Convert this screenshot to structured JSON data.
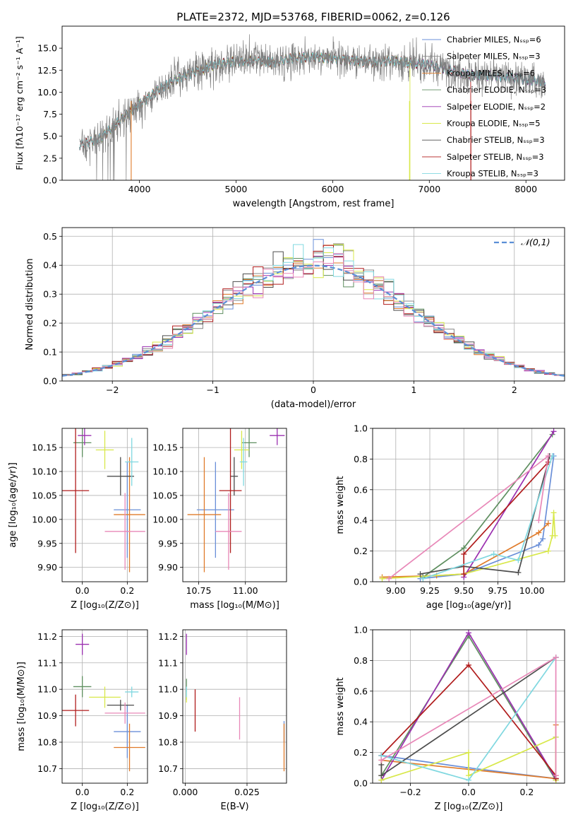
{
  "figure": {
    "title": "PLATE=2372, MJD=53768, FIBERID=0062, z=0.126"
  },
  "colors": {
    "Chabrier MILES": "#6a8fd8",
    "Salpeter MILES": "#888888",
    "Kroupa MILES": "#e07b2a",
    "Chabrier ELODIE": "#5f8f60",
    "Salpeter ELODIE": "#9b30b0",
    "Kroupa ELODIE": "#d8e84a",
    "Chabrier STELIB": "#4d4d4d",
    "Salpeter STELIB": "#b01c1c",
    "Kroupa STELIB": "#80d8e0",
    "pink": "#e888b8"
  },
  "chart_data": [
    {
      "id": "spectrum",
      "type": "line",
      "xlabel": "wavelength [Angstrom, rest frame]",
      "ylabel": "Flux [fλ10⁻¹⁷ erg cm⁻² s⁻¹ A⁻¹]",
      "xlim": [
        3200,
        8400
      ],
      "ylim": [
        0,
        17.5
      ],
      "xticks": [
        4000,
        5000,
        6000,
        7000,
        8000
      ],
      "yticks": [
        0.0,
        2.5,
        5.0,
        7.5,
        10.0,
        12.5,
        15.0
      ],
      "grid": false,
      "legend": "right",
      "legend_entries": [
        "Chabrier MILES, Nₛₛₚ=6",
        "Salpeter MILES, Nₛₛₚ=3",
        "Kroupa MILES, Nₛₛₚ=6",
        "Chabrier ELODIE, Nₛₛₚ=3",
        "Salpeter ELODIE, Nₛₛₚ=2",
        "Kroupa ELODIE, Nₛₛₚ=5",
        "Chabrier STELIB, Nₛₛₚ=3",
        "Salpeter STELIB, Nₛₛₚ=3",
        "Kroupa STELIB, Nₛₛₚ=3"
      ],
      "continuum": [
        [
          3380,
          4.0
        ],
        [
          3600,
          4.8
        ],
        [
          3800,
          6.8
        ],
        [
          4000,
          8.6
        ],
        [
          4200,
          10.3
        ],
        [
          4400,
          11.6
        ],
        [
          4600,
          12.4
        ],
        [
          4800,
          13.2
        ],
        [
          5000,
          13.5
        ],
        [
          5200,
          13.6
        ],
        [
          5400,
          13.4
        ],
        [
          5600,
          13.9
        ],
        [
          5800,
          14.0
        ],
        [
          6000,
          13.8
        ],
        [
          6200,
          13.6
        ],
        [
          6400,
          13.4
        ],
        [
          6600,
          13.6
        ],
        [
          6800,
          13.3
        ],
        [
          7000,
          13.1
        ],
        [
          7200,
          12.6
        ],
        [
          7400,
          12.0
        ],
        [
          7600,
          11.9
        ],
        [
          7800,
          11.7
        ],
        [
          8000,
          11.4
        ],
        [
          8200,
          11.2
        ]
      ]
    },
    {
      "id": "residuals",
      "type": "histogram",
      "xlabel": "(data-model)/error",
      "ylabel": "Normed distribution",
      "xlim": [
        -2.5,
        2.5
      ],
      "ylim": [
        0,
        0.53
      ],
      "xticks": [
        -2,
        -1,
        0,
        1,
        2
      ],
      "yticks": [
        0.0,
        0.1,
        0.2,
        0.3,
        0.4,
        0.5
      ],
      "grid": true,
      "legend": "top-right",
      "legend_entries": [
        "𝒩(0,1)"
      ],
      "bin_width": 0.1
    },
    {
      "id": "age-vs-Z",
      "type": "errorbar",
      "xlabel": "Z [log₁₀(Z/Z⊙)]",
      "ylabel": "age  [log₁₀(age/yr)]",
      "xlim": [
        -0.09,
        0.29
      ],
      "ylim": [
        9.87,
        10.19
      ],
      "xticks": [
        0.0,
        0.2
      ],
      "yticks": [
        9.9,
        9.95,
        10.0,
        10.05,
        10.1,
        10.15
      ],
      "grid": true,
      "points": [
        {
          "c": "Chabrier MILES",
          "x": 0.2,
          "xe": 0.06,
          "y": 10.02,
          "ye": 0.1
        },
        {
          "c": "Kroupa MILES",
          "x": 0.21,
          "xe": 0.07,
          "y": 10.01,
          "ye": 0.12
        },
        {
          "c": "Chabrier ELODIE",
          "x": 0.0,
          "xe": 0.04,
          "y": 10.16,
          "ye": 0.03
        },
        {
          "c": "Salpeter ELODIE",
          "x": 0.01,
          "xe": 0.03,
          "y": 10.175,
          "ye": 0.02
        },
        {
          "c": "Kroupa ELODIE",
          "x": 0.1,
          "xe": 0.04,
          "y": 10.145,
          "ye": 0.04
        },
        {
          "c": "Chabrier STELIB",
          "x": 0.17,
          "xe": 0.06,
          "y": 10.09,
          "ye": 0.04
        },
        {
          "c": "Salpeter STELIB",
          "x": -0.03,
          "xe": 0.06,
          "y": 10.06,
          "ye": 0.13
        },
        {
          "c": "Kroupa STELIB",
          "x": 0.22,
          "xe": 0.03,
          "y": 10.12,
          "ye": 0.05
        },
        {
          "c": "pink",
          "x": 0.19,
          "xe": 0.09,
          "y": 9.975,
          "ye": 0.08
        }
      ]
    },
    {
      "id": "age-vs-mass",
      "type": "errorbar",
      "xlabel": "mass [log₁₀(M/M⊙)]",
      "ylabel": "",
      "xlim": [
        10.665,
        11.22
      ],
      "ylim": [
        9.87,
        10.19
      ],
      "xticks": [
        10.75,
        11.0
      ],
      "yticks": [
        9.9,
        9.95,
        10.0,
        10.05,
        10.1,
        10.15
      ],
      "grid": true,
      "points": [
        {
          "c": "Chabrier MILES",
          "x": 10.84,
          "xe": 0.1,
          "y": 10.02,
          "ye": 0.1
        },
        {
          "c": "Kroupa MILES",
          "x": 10.78,
          "xe": 0.09,
          "y": 10.01,
          "ye": 0.12
        },
        {
          "c": "Chabrier ELODIE",
          "x": 11.02,
          "xe": 0.04,
          "y": 10.16,
          "ye": 0.03
        },
        {
          "c": "Salpeter ELODIE",
          "x": 11.17,
          "xe": 0.04,
          "y": 10.175,
          "ye": 0.02
        },
        {
          "c": "Kroupa ELODIE",
          "x": 10.98,
          "xe": 0.04,
          "y": 10.145,
          "ye": 0.04
        },
        {
          "c": "Chabrier STELIB",
          "x": 10.94,
          "xe": 0.02,
          "y": 10.09,
          "ye": 0.04
        },
        {
          "c": "Salpeter STELIB",
          "x": 10.92,
          "xe": 0.06,
          "y": 10.06,
          "ye": 0.13
        },
        {
          "c": "Kroupa STELIB",
          "x": 10.99,
          "xe": 0.02,
          "y": 10.12,
          "ye": 0.05
        },
        {
          "c": "pink",
          "x": 10.91,
          "xe": 0.07,
          "y": 9.975,
          "ye": 0.08
        }
      ]
    },
    {
      "id": "weight-vs-age",
      "type": "line",
      "xlabel": "age  [log₁₀(age/yr)]",
      "ylabel": "mass weight",
      "xlim": [
        8.83,
        10.24
      ],
      "ylim": [
        0,
        1.0
      ],
      "xticks": [
        9.0,
        9.25,
        9.5,
        9.75,
        10.0
      ],
      "yticks": [
        0.0,
        0.2,
        0.4,
        0.6,
        0.8,
        1.0
      ],
      "grid": true,
      "series": [
        {
          "c": "Chabrier MILES",
          "x": [
            9.18,
            9.5,
            10.05,
            10.08,
            10.16
          ],
          "y": [
            0.02,
            0.05,
            0.24,
            0.28,
            0.82
          ]
        },
        {
          "c": "Kroupa MILES",
          "x": [
            8.9,
            9.3,
            9.5,
            10.05,
            10.12
          ],
          "y": [
            0.03,
            0.04,
            0.05,
            0.32,
            0.38
          ]
        },
        {
          "c": "Chabrier ELODIE",
          "x": [
            9.2,
            9.5,
            10.15
          ],
          "y": [
            0.03,
            0.22,
            0.96
          ]
        },
        {
          "c": "Salpeter ELODIE",
          "x": [
            9.5,
            10.16
          ],
          "y": [
            0.03,
            0.98
          ]
        },
        {
          "c": "Kroupa ELODIE",
          "x": [
            8.9,
            9.5,
            10.12,
            10.15,
            10.16,
            10.17
          ],
          "y": [
            0.02,
            0.05,
            0.2,
            0.3,
            0.45,
            0.3
          ]
        },
        {
          "c": "Chabrier STELIB",
          "x": [
            9.18,
            9.5,
            9.9,
            10.13
          ],
          "y": [
            0.05,
            0.1,
            0.06,
            0.82
          ]
        },
        {
          "c": "Salpeter STELIB",
          "x": [
            9.5,
            9.5,
            10.12
          ],
          "y": [
            0.05,
            0.18,
            0.78
          ]
        },
        {
          "c": "Kroupa STELIB",
          "x": [
            9.2,
            9.72,
            9.9,
            10.15
          ],
          "y": [
            0.02,
            0.18,
            0.14,
            0.82
          ]
        },
        {
          "c": "pink",
          "x": [
            8.95,
            10.12,
            10.05
          ],
          "y": [
            0.02,
            0.82,
            0.4
          ]
        }
      ]
    },
    {
      "id": "mass-vs-Z",
      "type": "errorbar",
      "xlabel": "Z [log₁₀(Z/Z⊙)]",
      "ylabel": "mass [log₁₀(M/M⊙)]",
      "xlim": [
        -0.09,
        0.29
      ],
      "ylim": [
        10.645,
        11.225
      ],
      "xticks": [
        0.0,
        0.2
      ],
      "yticks": [
        10.7,
        10.8,
        10.9,
        11.0,
        11.1,
        11.2
      ],
      "grid": true,
      "points": [
        {
          "c": "Chabrier MILES",
          "x": 0.2,
          "xe": 0.06,
          "y": 10.84,
          "ye": 0.1
        },
        {
          "c": "Kroupa MILES",
          "x": 0.21,
          "xe": 0.07,
          "y": 10.78,
          "ye": 0.09
        },
        {
          "c": "Chabrier ELODIE",
          "x": 0.0,
          "xe": 0.04,
          "y": 11.01,
          "ye": 0.04
        },
        {
          "c": "Salpeter ELODIE",
          "x": 0.0,
          "xe": 0.03,
          "y": 11.17,
          "ye": 0.04
        },
        {
          "c": "Kroupa ELODIE",
          "x": 0.1,
          "xe": 0.07,
          "y": 10.97,
          "ye": 0.04
        },
        {
          "c": "Chabrier STELIB",
          "x": 0.17,
          "xe": 0.06,
          "y": 10.94,
          "ye": 0.02
        },
        {
          "c": "Salpeter STELIB",
          "x": -0.03,
          "xe": 0.06,
          "y": 10.92,
          "ye": 0.06
        },
        {
          "c": "Kroupa STELIB",
          "x": 0.22,
          "xe": 0.03,
          "y": 10.99,
          "ye": 0.02
        },
        {
          "c": "pink",
          "x": 0.19,
          "xe": 0.09,
          "y": 10.91,
          "ye": 0.04
        }
      ]
    },
    {
      "id": "mass-vs-EBV",
      "type": "errorbar",
      "xlabel": "E(B-V)",
      "ylabel": "",
      "xlim": [
        -0.001,
        0.041
      ],
      "ylim": [
        10.645,
        11.225
      ],
      "xticks": [
        0.0,
        0.025
      ],
      "yticks": [
        10.7,
        10.8,
        10.9,
        11.0,
        11.1,
        11.2
      ],
      "grid": true,
      "points": [
        {
          "c": "Chabrier MILES",
          "x": 0.04,
          "xe": 0,
          "y": 10.84,
          "ye": 0.04
        },
        {
          "c": "Kroupa MILES",
          "x": 0.04,
          "xe": 0,
          "y": 10.78,
          "ye": 0.09
        },
        {
          "c": "Chabrier ELODIE",
          "x": 0.0005,
          "xe": 0,
          "y": 11.0,
          "ye": 0.04
        },
        {
          "c": "Salpeter ELODIE",
          "x": 0.0005,
          "xe": 0,
          "y": 11.17,
          "ye": 0.04
        },
        {
          "c": "Kroupa ELODIE",
          "x": 0.0005,
          "xe": 0,
          "y": 10.97,
          "ye": 0.02
        },
        {
          "c": "Salpeter STELIB",
          "x": 0.004,
          "xe": 0,
          "y": 10.92,
          "ye": 0.08
        },
        {
          "c": "Kroupa STELIB",
          "x": 0.0005,
          "xe": 0,
          "y": 10.99,
          "ye": 0.02
        },
        {
          "c": "pink",
          "x": 0.022,
          "xe": 0,
          "y": 10.89,
          "ye": 0.08
        }
      ]
    },
    {
      "id": "weight-vs-Z",
      "type": "line",
      "xlabel": "Z [log₁₀(Z/Z⊙)]",
      "ylabel": "mass weight",
      "xlim": [
        -0.33,
        0.33
      ],
      "ylim": [
        0,
        1.0
      ],
      "xticks": [
        -0.2,
        0.0,
        0.2
      ],
      "yticks": [
        0.0,
        0.2,
        0.4,
        0.6,
        0.8,
        1.0
      ],
      "grid": true,
      "series": [
        {
          "c": "Chabrier MILES",
          "x": [
            -0.3,
            0.0,
            0.3,
            0.3
          ],
          "y": [
            0.18,
            0.1,
            0.03,
            0.3
          ]
        },
        {
          "c": "Kroupa MILES",
          "x": [
            -0.3,
            -0.3,
            0.3,
            0.3
          ],
          "y": [
            0.05,
            0.15,
            0.03,
            0.38
          ]
        },
        {
          "c": "Chabrier ELODIE",
          "x": [
            -0.3,
            0.0,
            0.3
          ],
          "y": [
            0.05,
            0.96,
            0.02
          ]
        },
        {
          "c": "Salpeter ELODIE",
          "x": [
            -0.3,
            0.0,
            0.3
          ],
          "y": [
            0.02,
            0.98,
            0.03
          ]
        },
        {
          "c": "Kroupa ELODIE",
          "x": [
            -0.3,
            0.0,
            0.0,
            0.3,
            0.3
          ],
          "y": [
            0.02,
            0.2,
            0.05,
            0.3,
            0.02
          ]
        },
        {
          "c": "Chabrier STELIB",
          "x": [
            -0.3,
            -0.3,
            0.3
          ],
          "y": [
            0.12,
            0.05,
            0.82
          ]
        },
        {
          "c": "Salpeter STELIB",
          "x": [
            -0.3,
            0.0,
            0.3,
            0.3
          ],
          "y": [
            0.18,
            0.77,
            0.05,
            0.03
          ]
        },
        {
          "c": "Kroupa STELIB",
          "x": [
            -0.3,
            0.0,
            0.3
          ],
          "y": [
            0.18,
            0.02,
            0.82
          ]
        },
        {
          "c": "pink",
          "x": [
            -0.3,
            0.3,
            0.3
          ],
          "y": [
            0.15,
            0.82,
            0.05
          ]
        }
      ]
    }
  ]
}
